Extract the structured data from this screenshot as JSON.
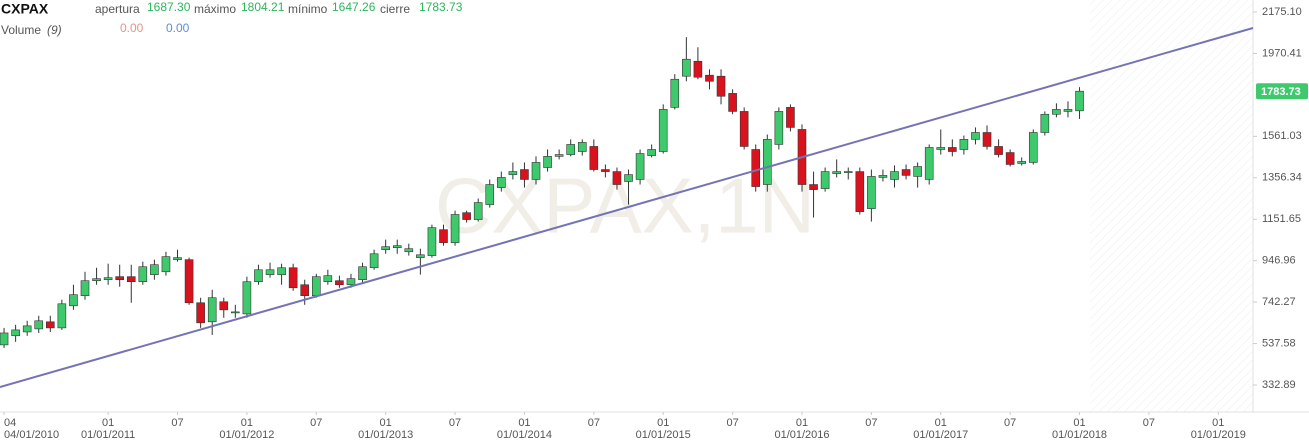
{
  "chart_data": {
    "type": "candlestick",
    "title": "CXPAX",
    "watermark": "CXPAX,1N",
    "header": {
      "open_label": "apertura",
      "open": "1687.30",
      "high_label": "máximo",
      "high": "1804.21",
      "low_label": "mínimo",
      "low": "1647.26",
      "close_label": "cierre",
      "close": "1783.73"
    },
    "volume": {
      "label": "Volume",
      "period": "(9)",
      "values": [
        "0.00",
        "0.00"
      ]
    },
    "last_price": 1783.73,
    "up_color": "#3ec96c",
    "down_color": "#d9131e",
    "ylim": [
      332.89,
      2175.1
    ],
    "yticks": [
      332.89,
      537.58,
      742.27,
      946.96,
      1151.65,
      1356.34,
      1561.03,
      1970.41,
      {
        "value": 2175.1,
        "label": "2175.10"
      }
    ],
    "xlim": [
      -0.35,
      108
    ],
    "xticks": [
      {
        "value": 0,
        "label": "04"
      },
      {
        "value": 9,
        "label": "01"
      },
      {
        "value": 15,
        "label": "07"
      },
      {
        "value": 21,
        "label": "01"
      },
      {
        "value": 27,
        "label": "07"
      },
      {
        "value": 33,
        "label": "01"
      },
      {
        "value": 39,
        "label": "07"
      },
      {
        "value": 45,
        "label": "01"
      },
      {
        "value": 51,
        "label": "07"
      },
      {
        "value": 57,
        "label": "01"
      },
      {
        "value": 63,
        "label": "07"
      },
      {
        "value": 69,
        "label": "01"
      },
      {
        "value": 75,
        "label": "07"
      },
      {
        "value": 81,
        "label": "01"
      },
      {
        "value": 87,
        "label": "07"
      },
      {
        "value": 93,
        "label": "01"
      },
      {
        "value": 99,
        "label": "07"
      },
      {
        "value": 105,
        "label": "01"
      }
    ],
    "xdates": [
      {
        "value": 0,
        "label": "04/01/2010"
      },
      {
        "value": 9,
        "label": "01/01/2011"
      },
      {
        "value": 21,
        "label": "01/01/2012"
      },
      {
        "value": 33,
        "label": "01/01/2013"
      },
      {
        "value": 45,
        "label": "01/01/2014"
      },
      {
        "value": 57,
        "label": "01/01/2015"
      },
      {
        "value": 69,
        "label": "01/01/2016"
      },
      {
        "value": 81,
        "label": "01/01/2017"
      },
      {
        "value": 93,
        "label": "01/01/2018"
      },
      {
        "value": 105,
        "label": "01/01/2019"
      }
    ],
    "open": [
      531,
      576,
      595,
      610,
      645,
      615,
      724,
      774,
      848,
      853,
      868,
      868,
      843,
      878,
      892,
      952,
      952,
      739,
      645,
      744,
      689,
      684,
      843,
      878,
      878,
      912,
      828,
      774,
      843,
      848,
      828,
      853,
      912,
      1001,
      1011,
      991,
      962,
      972,
      1100,
      1036,
      1184,
      1150,
      1224,
      1308,
      1372,
      1397,
      1348,
      1407,
      1462,
      1471,
      1486,
      1511,
      1397,
      1387,
      1338,
      1348,
      1466,
      1486,
      1704,
      1858,
      1932,
      1863,
      1858,
      1773,
      1684,
      1496,
      1323,
      1521,
      1704,
      1595,
      1323,
      1303,
      1377,
      1382,
      1387,
      1204,
      1358,
      1348,
      1397,
      1363,
      1348,
      1496,
      1506,
      1496,
      1546,
      1580,
      1511,
      1481,
      1427,
      1432,
      1580,
      1670,
      1684,
      1687
    ],
    "close": [
      590,
      605,
      625,
      650,
      615,
      734,
      779,
      848,
      858,
      863,
      853,
      843,
      917,
      927,
      967,
      962,
      739,
      640,
      764,
      704,
      694,
      843,
      902,
      902,
      912,
      813,
      774,
      868,
      873,
      828,
      858,
      917,
      981,
      1016,
      1021,
      1006,
      976,
      1110,
      1036,
      1175,
      1150,
      1234,
      1323,
      1358,
      1387,
      1348,
      1432,
      1462,
      1471,
      1521,
      1531,
      1397,
      1387,
      1323,
      1372,
      1476,
      1496,
      1694,
      1843,
      1942,
      1853,
      1833,
      1759,
      1684,
      1511,
      1313,
      1546,
      1684,
      1605,
      1323,
      1298,
      1387,
      1387,
      1387,
      1189,
      1363,
      1368,
      1387,
      1368,
      1412,
      1506,
      1506,
      1486,
      1546,
      1580,
      1511,
      1471,
      1422,
      1437,
      1580,
      1670,
      1694,
      1694,
      1784
    ],
    "high": [
      615,
      630,
      650,
      675,
      675,
      754,
      828,
      892,
      912,
      932,
      927,
      927,
      942,
      952,
      991,
      1001,
      962,
      764,
      803,
      764,
      729,
      868,
      927,
      937,
      932,
      932,
      853,
      882,
      902,
      873,
      882,
      937,
      1001,
      1051,
      1051,
      1031,
      1006,
      1125,
      1125,
      1194,
      1194,
      1254,
      1348,
      1387,
      1432,
      1432,
      1462,
      1496,
      1496,
      1546,
      1546,
      1546,
      1422,
      1407,
      1397,
      1496,
      1521,
      1719,
      1868,
      2051,
      2001,
      1892,
      1892,
      1793,
      1704,
      1521,
      1570,
      1704,
      1719,
      1620,
      1387,
      1407,
      1447,
      1407,
      1407,
      1397,
      1397,
      1417,
      1422,
      1432,
      1521,
      1595,
      1546,
      1565,
      1605,
      1615,
      1546,
      1496,
      1457,
      1595,
      1684,
      1724,
      1734,
      1804
    ],
    "low": [
      516,
      546,
      576,
      590,
      595,
      605,
      704,
      754,
      828,
      828,
      818,
      739,
      828,
      853,
      873,
      942,
      729,
      615,
      580,
      665,
      665,
      665,
      828,
      863,
      828,
      798,
      729,
      764,
      828,
      813,
      813,
      833,
      902,
      981,
      981,
      972,
      878,
      962,
      1021,
      1021,
      1135,
      1140,
      1209,
      1288,
      1348,
      1308,
      1323,
      1387,
      1447,
      1462,
      1466,
      1387,
      1358,
      1298,
      1224,
      1323,
      1457,
      1476,
      1694,
      1833,
      1843,
      1793,
      1719,
      1670,
      1496,
      1288,
      1288,
      1496,
      1585,
      1288,
      1160,
      1288,
      1358,
      1348,
      1175,
      1140,
      1338,
      1308,
      1348,
      1308,
      1323,
      1471,
      1462,
      1471,
      1521,
      1496,
      1457,
      1412,
      1417,
      1422,
      1565,
      1655,
      1655,
      1647
    ]
  }
}
